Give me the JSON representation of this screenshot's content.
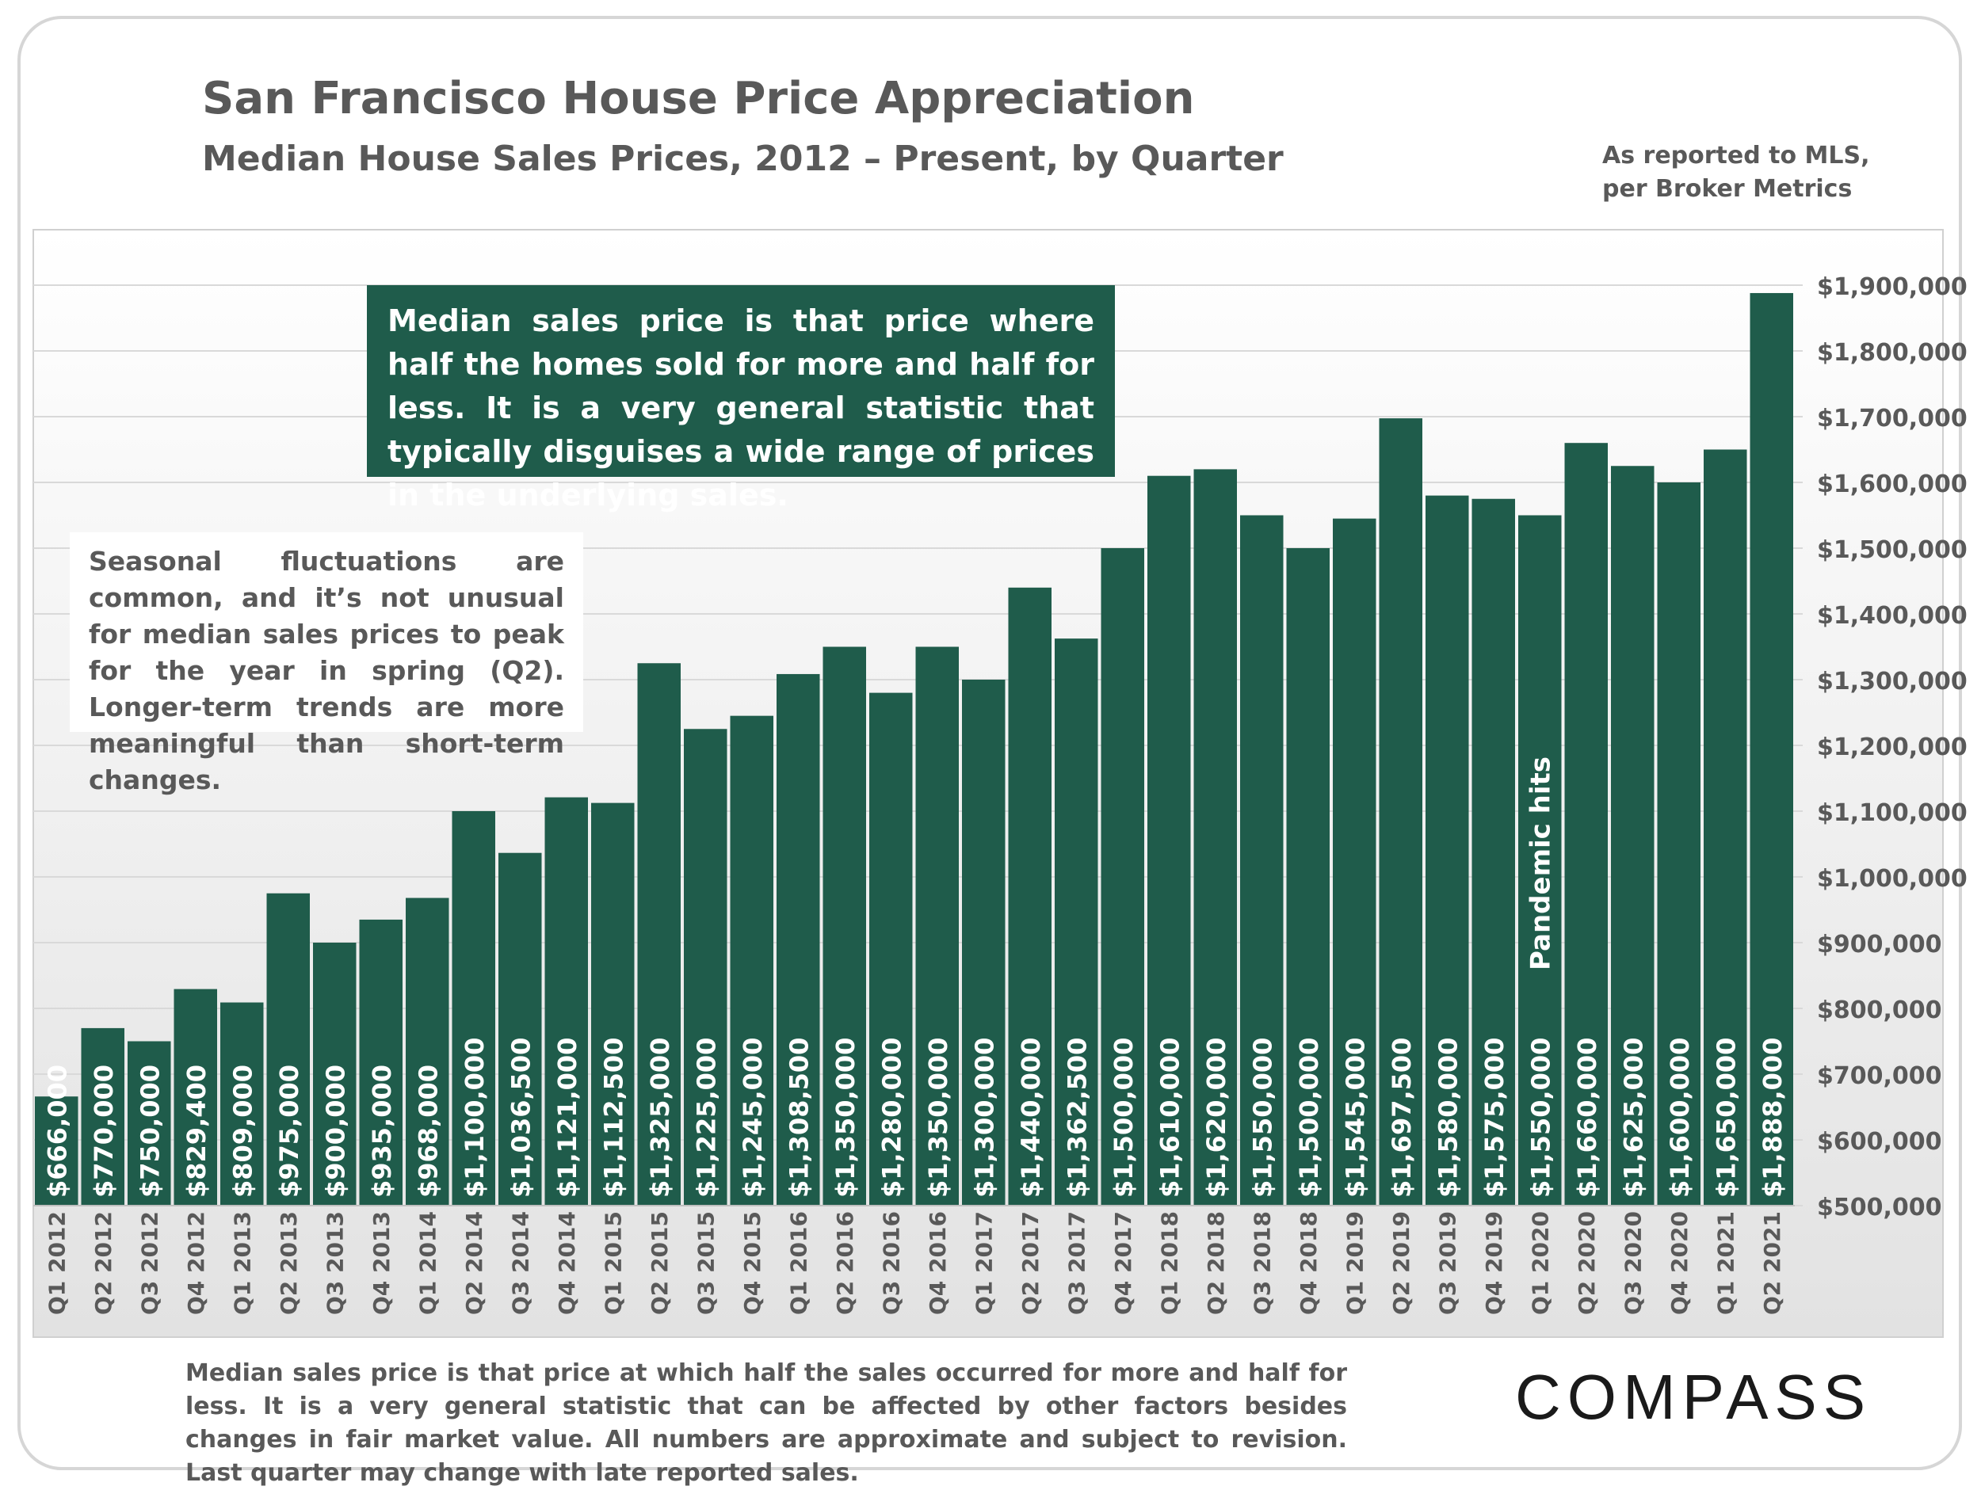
{
  "header": {
    "title": "San Francisco House Price Appreciation",
    "subtitle": "Median House Sales Prices, 2012 – Present, by Quarter",
    "source_line1": "As reported to MLS,",
    "source_line2": "per Broker Metrics"
  },
  "notes": {
    "median_definition": "Median sales price is that price where half the homes sold for more and half for less. It is a very general statistic that typically disguises a wide range of prices in the underlying sales.",
    "seasonal": "Seasonal fluctuations are common, and it’s not unusual for median sales prices to peak for the year in spring (Q2). Longer-term trends are more meaningful than short-term changes.",
    "pandemic": "Pandemic hits"
  },
  "footer": {
    "footnote": "Median sales price is that price at which half the sales occurred for more and half for less. It is a very general statistic that can be affected by other factors besides changes in fair market value. All numbers are approximate and subject to revision. Last quarter may change with late reported sales.",
    "logo": "COMPASS"
  },
  "colors": {
    "bar": "#1f5c4b",
    "text": "#595959",
    "grid": "#d9d9d9",
    "label": "#ffffff"
  },
  "chart_data": {
    "type": "bar",
    "title": "San Francisco House Price Appreciation",
    "subtitle": "Median House Sales Prices, 2012 – Present, by Quarter",
    "xlabel": "",
    "ylabel": "",
    "ylim": [
      500000,
      1900000
    ],
    "ytick_step": 100000,
    "ytick_labels": [
      "$500,000",
      "$600,000",
      "$700,000",
      "$800,000",
      "$900,000",
      "$1,000,000",
      "$1,100,000",
      "$1,200,000",
      "$1,300,000",
      "$1,400,000",
      "$1,500,000",
      "$1,600,000",
      "$1,700,000",
      "$1,800,000",
      "$1,900,000"
    ],
    "categories": [
      "Q1 2012",
      "Q2 2012",
      "Q3 2012",
      "Q4 2012",
      "Q1 2013",
      "Q2 2013",
      "Q3 2013",
      "Q4 2013",
      "Q1 2014",
      "Q2 2014",
      "Q3 2014",
      "Q4 2014",
      "Q1 2015",
      "Q2 2015",
      "Q3 2015",
      "Q4 2015",
      "Q1 2016",
      "Q2 2016",
      "Q3 2016",
      "Q4 2016",
      "Q1 2017",
      "Q2 2017",
      "Q3 2017",
      "Q4 2017",
      "Q1 2018",
      "Q2 2018",
      "Q3 2018",
      "Q4 2018",
      "Q1 2019",
      "Q2 2019",
      "Q3 2019",
      "Q4 2019",
      "Q1 2020",
      "Q2 2020",
      "Q3 2020",
      "Q4 2020",
      "Q1 2021",
      "Q2 2021"
    ],
    "values": [
      666000,
      770000,
      750000,
      829400,
      809000,
      975000,
      900000,
      935000,
      968000,
      1100000,
      1036500,
      1121000,
      1112500,
      1325000,
      1225000,
      1245000,
      1308500,
      1350000,
      1280000,
      1350000,
      1300000,
      1440000,
      1362500,
      1500000,
      1610000,
      1620000,
      1550000,
      1500000,
      1545000,
      1697500,
      1580000,
      1575000,
      1550000,
      1660000,
      1625000,
      1600000,
      1650000,
      1888000
    ],
    "value_labels": [
      "$666,000",
      "$770,000",
      "$750,000",
      "$829,400",
      "$809,000",
      "$975,000",
      "$900,000",
      "$935,000",
      "$968,000",
      "$1,100,000",
      "$1,036,500",
      "$1,121,000",
      "$1,112,500",
      "$1,325,000",
      "$1,225,000",
      "$1,245,000",
      "$1,308,500",
      "$1,350,000",
      "$1,280,000",
      "$1,350,000",
      "$1,300,000",
      "$1,440,000",
      "$1,362,500",
      "$1,500,000",
      "$1,610,000",
      "$1,620,000",
      "$1,550,000",
      "$1,500,000",
      "$1,545,000",
      "$1,697,500",
      "$1,580,000",
      "$1,575,000",
      "$1,550,000",
      "$1,660,000",
      "$1,625,000",
      "$1,600,000",
      "$1,650,000",
      "$1,888,000"
    ],
    "annotation_category": "Q1 2020",
    "grid": true
  }
}
